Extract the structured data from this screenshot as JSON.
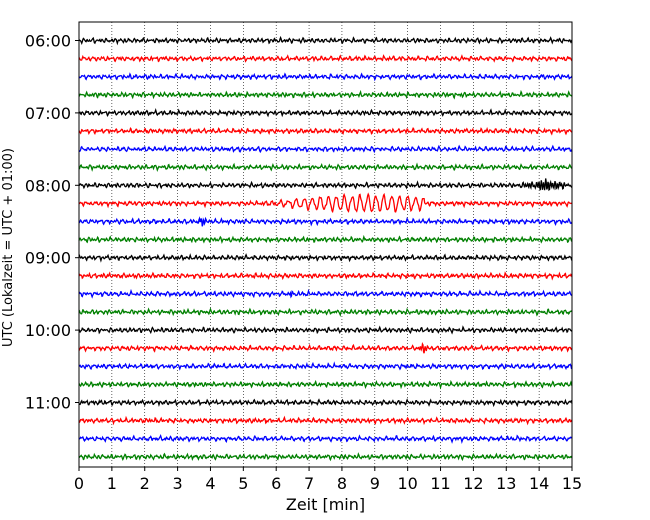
{
  "chart_data": {
    "type": "line",
    "title": "",
    "xlabel": "Zeit  [min]",
    "ylabel": "UTC (Lokalzeit = UTC + 01:00)",
    "xlim": [
      0,
      15
    ],
    "xticks": [
      0,
      1,
      2,
      3,
      4,
      5,
      6,
      7,
      8,
      9,
      10,
      11,
      12,
      13,
      14,
      15
    ],
    "xtick_labels": [
      "0",
      "1",
      "2",
      "3",
      "4",
      "5",
      "6",
      "7",
      "8",
      "9",
      "10",
      "11",
      "12",
      "13",
      "14",
      "15"
    ],
    "ytick_labels": [
      "06:00",
      "07:00",
      "08:00",
      "09:00",
      "10:00",
      "11:00"
    ],
    "ytick_rows": [
      0,
      4,
      8,
      12,
      16,
      20
    ],
    "start_time": "06:00",
    "row_minutes": 15,
    "grid": "vertical dotted",
    "colors": [
      "#000000",
      "#ff0000",
      "#0000ff",
      "#008000"
    ],
    "rows": [
      {
        "time": "06:00",
        "color": "#000000"
      },
      {
        "time": "06:15",
        "color": "#ff0000"
      },
      {
        "time": "06:30",
        "color": "#0000ff"
      },
      {
        "time": "06:45",
        "color": "#008000"
      },
      {
        "time": "07:00",
        "color": "#000000"
      },
      {
        "time": "07:15",
        "color": "#ff0000"
      },
      {
        "time": "07:30",
        "color": "#0000ff"
      },
      {
        "time": "07:45",
        "color": "#008000"
      },
      {
        "time": "08:00",
        "color": "#000000"
      },
      {
        "time": "08:15",
        "color": "#ff0000"
      },
      {
        "time": "08:30",
        "color": "#0000ff"
      },
      {
        "time": "08:45",
        "color": "#008000"
      },
      {
        "time": "09:00",
        "color": "#000000"
      },
      {
        "time": "09:15",
        "color": "#ff0000"
      },
      {
        "time": "09:30",
        "color": "#0000ff"
      },
      {
        "time": "09:45",
        "color": "#008000"
      },
      {
        "time": "10:00",
        "color": "#000000"
      },
      {
        "time": "10:15",
        "color": "#ff0000"
      },
      {
        "time": "10:30",
        "color": "#0000ff"
      },
      {
        "time": "10:45",
        "color": "#008000"
      },
      {
        "time": "11:00",
        "color": "#000000"
      },
      {
        "time": "11:15",
        "color": "#ff0000"
      },
      {
        "time": "11:30",
        "color": "#0000ff"
      },
      {
        "time": "11:45",
        "color": "#008000"
      }
    ],
    "events": [
      {
        "row": 8,
        "x_start": 13.4,
        "x_end": 15.0,
        "amplitude": 0.3
      },
      {
        "row": 9,
        "x_start": 5.0,
        "x_end": 10.5,
        "peak_x": 8.8,
        "amplitude": 0.55
      },
      {
        "row": 10,
        "x_start": 3.6,
        "x_end": 3.9,
        "amplitude": 0.25
      },
      {
        "row": 14,
        "x_start": 6.4,
        "x_end": 6.5,
        "amplitude": 0.25
      },
      {
        "row": 17,
        "x_start": 10.3,
        "x_end": 10.7,
        "amplitude": 0.25
      }
    ]
  }
}
